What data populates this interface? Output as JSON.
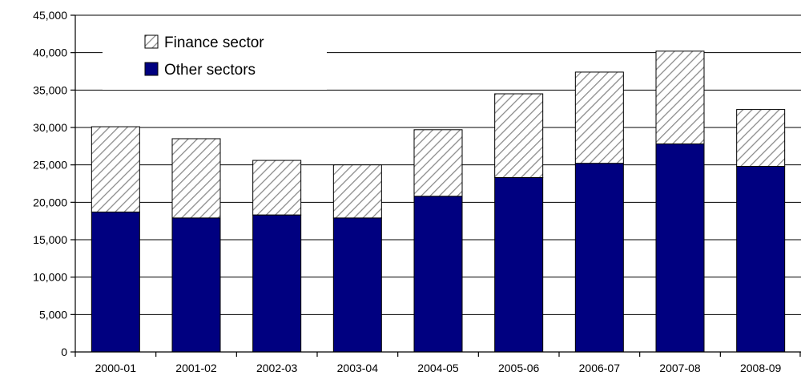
{
  "chart_data": {
    "type": "bar",
    "stacked": true,
    "title": "",
    "xlabel": "",
    "ylabel": "",
    "categories": [
      "2000-01",
      "2001-02",
      "2002-03",
      "2003-04",
      "2004-05",
      "2005-06",
      "2006-07",
      "2007-08",
      "2008-09"
    ],
    "series": [
      {
        "name": "Other sectors",
        "values": [
          18700,
          17900,
          18300,
          17900,
          20800,
          23300,
          25200,
          27800,
          24800
        ],
        "color": "#000080",
        "pattern": "solid"
      },
      {
        "name": "Finance sector",
        "values": [
          11400,
          10600,
          7300,
          7100,
          8900,
          11200,
          12200,
          12400,
          7600
        ],
        "color": "#ffffff",
        "pattern": "diagonal-hatch"
      }
    ],
    "ylim": [
      0,
      45000
    ],
    "yticks": [
      0,
      5000,
      10000,
      15000,
      20000,
      25000,
      30000,
      35000,
      40000,
      45000
    ],
    "ytick_labels": [
      "0",
      "5,000",
      "10,000",
      "15,000",
      "20,000",
      "25,000",
      "30,000",
      "35,000",
      "40,000",
      "45,000"
    ],
    "grid": true,
    "legend_position": "top-left",
    "legend_order": [
      "Finance sector",
      "Other sectors"
    ]
  }
}
